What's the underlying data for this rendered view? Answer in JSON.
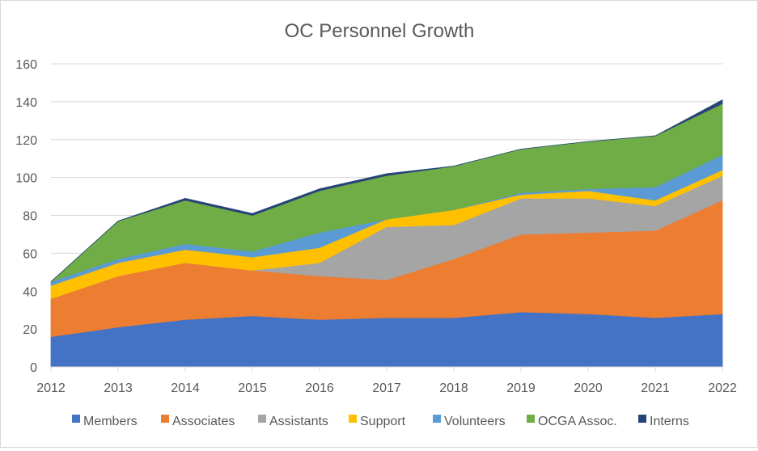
{
  "chart_data": {
    "type": "area",
    "stacked": true,
    "title": "OC Personnel Growth",
    "xlabel": "",
    "ylabel": "",
    "categories": [
      "2012",
      "2013",
      "2014",
      "2015",
      "2016",
      "2017",
      "2018",
      "2019",
      "2020",
      "2021",
      "2022"
    ],
    "ylim": [
      0,
      160
    ],
    "yticks": [
      0,
      20,
      40,
      60,
      80,
      100,
      120,
      140,
      160
    ],
    "grid": true,
    "legend_position": "bottom",
    "series": [
      {
        "name": "Members",
        "color": "#4472C4",
        "values": [
          16,
          21,
          25,
          27,
          25,
          26,
          26,
          29,
          28,
          26,
          28
        ]
      },
      {
        "name": "Associates",
        "color": "#ED7D31",
        "values": [
          20,
          27,
          30,
          24,
          23,
          20,
          31,
          41,
          43,
          46,
          60
        ]
      },
      {
        "name": "Assistants",
        "color": "#A5A5A5",
        "values": [
          0,
          0,
          0,
          0,
          7,
          28,
          18,
          19,
          18,
          13,
          13
        ]
      },
      {
        "name": "Support",
        "color": "#FFC000",
        "values": [
          7,
          7,
          7,
          7,
          8,
          4,
          8,
          2,
          4,
          3,
          3
        ]
      },
      {
        "name": "Volunteers",
        "color": "#5B9BD5",
        "values": [
          2,
          2,
          3,
          3,
          8,
          0,
          0,
          1,
          1,
          7,
          8
        ]
      },
      {
        "name": "OCGA Assoc.",
        "color": "#70AD47",
        "values": [
          0,
          20,
          23,
          19,
          22,
          23,
          23,
          23,
          25,
          27,
          27
        ]
      },
      {
        "name": "Interns",
        "color": "#264478",
        "values": [
          0,
          0,
          1,
          1,
          1,
          1,
          0,
          0,
          0,
          0,
          2
        ]
      }
    ]
  }
}
